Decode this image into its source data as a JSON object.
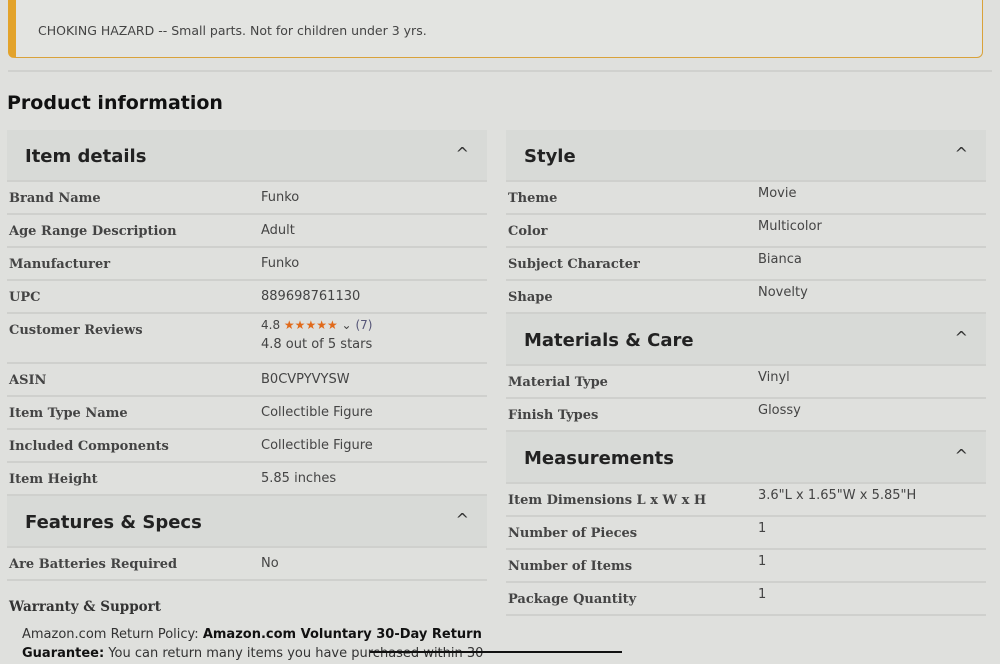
{
  "warning": {
    "text": "CHOKING HAZARD -- Small parts. Not for children under 3 yrs."
  },
  "title": "Product information",
  "item_details": {
    "title": "Item details",
    "rows": [
      {
        "k": "Brand Name",
        "v": "Funko"
      },
      {
        "k": "Age Range Description",
        "v": "Adult"
      },
      {
        "k": "Manufacturer",
        "v": "Funko"
      },
      {
        "k": "UPC",
        "v": "889698761130"
      },
      {
        "k": "Customer Reviews",
        "rating": "4.8",
        "stars": "★★★★★",
        "count": "(7)",
        "v": "4.8 out of 5 stars"
      },
      {
        "k": "ASIN",
        "v": "B0CVPYVYSW"
      },
      {
        "k": "Item Type Name",
        "v": "Collectible Figure"
      },
      {
        "k": "Included Components",
        "v": "Collectible Figure"
      },
      {
        "k": "Item Height",
        "v": "5.85 inches"
      }
    ]
  },
  "features": {
    "title": "Features & Specs",
    "rows": [
      {
        "k": "Are Batteries Required",
        "v": "No"
      }
    ]
  },
  "warranty": {
    "title": "Warranty & Support",
    "policy_label": "Amazon.com Return Policy:",
    "policy_bold": "Amazon.com Voluntary 30-Day Return",
    "guarantee_label": "Guarantee:",
    "guarantee_text": "You can return many items you have purchased within 30"
  },
  "style": {
    "title": "Style",
    "rows": [
      {
        "k": "Theme",
        "v": "Movie"
      },
      {
        "k": "Color",
        "v": "Multicolor"
      },
      {
        "k": "Subject Character",
        "v": "Bianca"
      },
      {
        "k": "Shape",
        "v": "Novelty"
      }
    ]
  },
  "materials": {
    "title": "Materials & Care",
    "rows": [
      {
        "k": "Material Type",
        "v": "Vinyl"
      },
      {
        "k": "Finish Types",
        "v": "Glossy"
      }
    ]
  },
  "measurements": {
    "title": "Measurements",
    "rows": [
      {
        "k": "Item Dimensions L x W x H",
        "v": "3.6\"L x 1.65\"W x 5.85\"H"
      },
      {
        "k": "Number of Pieces",
        "v": "1"
      },
      {
        "k": "Number of Items",
        "v": "1"
      },
      {
        "k": "Package Quantity",
        "v": "1"
      }
    ]
  },
  "chevron": "^"
}
